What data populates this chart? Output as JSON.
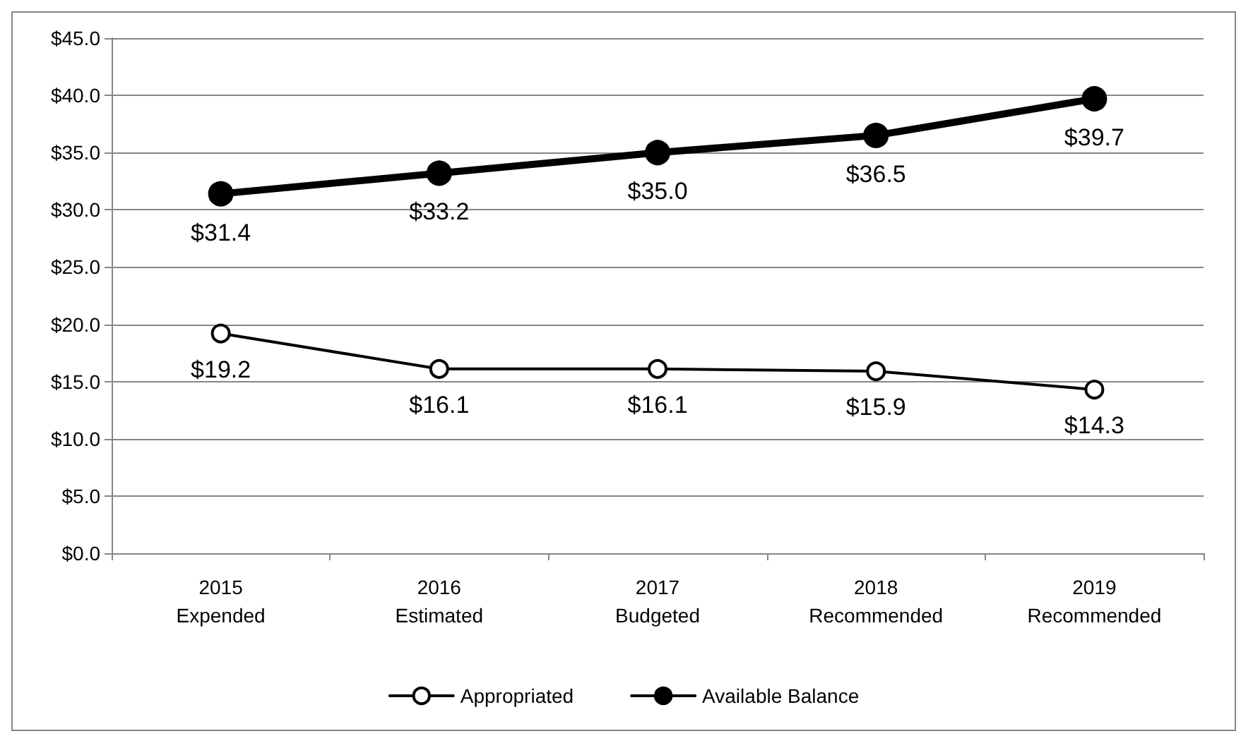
{
  "chart_data": {
    "type": "line",
    "categories": [
      "2015\nExpended",
      "2016\nEstimated",
      "2017\nBudgeted",
      "2018\nRecommended",
      "2019\nRecommended"
    ],
    "series": [
      {
        "name": "Appropriated",
        "color": "#000000",
        "values": [
          19.2,
          16.1,
          16.1,
          15.9,
          14.3
        ],
        "value_labels": [
          "$19.2",
          "$16.1",
          "$16.1",
          "$15.9",
          "$14.3"
        ]
      },
      {
        "name": "Available Balance",
        "color": "#000000",
        "values": [
          31.4,
          33.2,
          35.0,
          36.5,
          39.7
        ],
        "value_labels": [
          "$31.4",
          "$33.2",
          "$35.0",
          "$36.5",
          "$39.7"
        ]
      }
    ],
    "ylim": [
      0,
      45
    ],
    "yticks": [
      {
        "value": 0,
        "label": "$0.0"
      },
      {
        "value": 5,
        "label": "$5.0"
      },
      {
        "value": 10,
        "label": "$10.0"
      },
      {
        "value": 15,
        "label": "$15.0"
      },
      {
        "value": 20,
        "label": "$20.0"
      },
      {
        "value": 25,
        "label": "$25.0"
      },
      {
        "value": 30,
        "label": "$30.0"
      },
      {
        "value": 35,
        "label": "$35.0"
      },
      {
        "value": 40,
        "label": "$40.0"
      },
      {
        "value": 45,
        "label": "$45.0"
      }
    ],
    "grid": "y",
    "legend": "bottom",
    "marker": "circle",
    "line_style": "solid"
  }
}
